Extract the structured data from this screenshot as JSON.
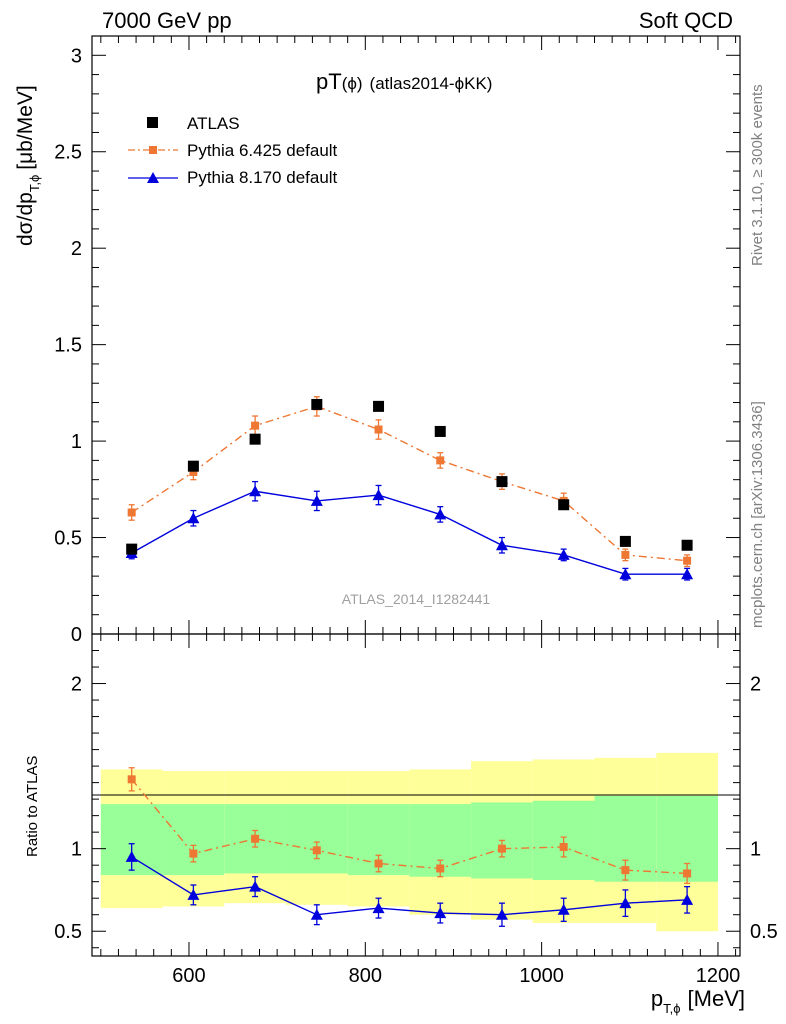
{
  "header": {
    "left": "7000 GeV pp",
    "right": "Soft QCD"
  },
  "title": {
    "main": "pT",
    "phi": "(ϕ)",
    "id": "(atlas2014-ϕKK)"
  },
  "side_labels": {
    "rivet": "Rivet 3.1.10, ≥ 300k events",
    "mcplots": "mcplots.cern.ch [arXiv:1306.3436]"
  },
  "watermark": "ATLAS_2014_I1282441",
  "axes": {
    "ylabel_top": "dσ/dp",
    "ylabel_top_sub": "T,ϕ",
    "ylabel_top_unit": "[μb/MeV]",
    "ylabel_bottom": "Ratio to ATLAS",
    "xlabel_main": "p",
    "xlabel_sub": "T,ϕ",
    "xlabel_unit": "[MeV]"
  },
  "chart_data": {
    "type": "scatter",
    "x": [
      535,
      605,
      675,
      745,
      815,
      885,
      955,
      1025,
      1095,
      1165
    ],
    "xlim": [
      490,
      1225
    ],
    "xticks": [
      "600",
      "800",
      "1000",
      "1200"
    ],
    "xtick_values": [
      600,
      800,
      1000,
      1200
    ],
    "main": {
      "ylim": [
        0,
        3.1
      ],
      "yticks": [
        "0",
        "0.5",
        "1",
        "1.5",
        "2",
        "2.5",
        "3"
      ],
      "ytick_values": [
        0,
        0.5,
        1,
        1.5,
        2,
        2.5,
        3
      ],
      "series": [
        {
          "name": "ATLAS",
          "color": "#000000",
          "marker": "square",
          "values": [
            0.44,
            0.87,
            1.01,
            1.19,
            1.18,
            1.05,
            0.79,
            0.67,
            0.48,
            0.46
          ]
        },
        {
          "name": "Pythia 6.425 default",
          "color": "#ee7733",
          "marker": "square-small",
          "line": "dashdot",
          "values": [
            0.63,
            0.84,
            1.08,
            1.18,
            1.06,
            0.9,
            0.79,
            0.69,
            0.41,
            0.38
          ],
          "errors": [
            0.04,
            0.04,
            0.05,
            0.05,
            0.05,
            0.04,
            0.04,
            0.04,
            0.03,
            0.03
          ]
        },
        {
          "name": "Pythia 8.170 default",
          "color": "#0000dd",
          "marker": "triangle",
          "line": "solid",
          "values": [
            0.42,
            0.6,
            0.74,
            0.69,
            0.72,
            0.62,
            0.46,
            0.41,
            0.31,
            0.31
          ],
          "errors": [
            0.03,
            0.04,
            0.05,
            0.05,
            0.05,
            0.04,
            0.04,
            0.03,
            0.03,
            0.03
          ]
        }
      ]
    },
    "ratio": {
      "ylim": [
        0.35,
        2.3
      ],
      "yticks": [
        "0.5",
        "1",
        "2"
      ],
      "ytick_values": [
        0.5,
        1,
        2
      ],
      "bands": {
        "edges": [
          500,
          570,
          640,
          710,
          780,
          850,
          920,
          990,
          1060,
          1130,
          1200
        ],
        "yellow_low": [
          0.64,
          0.65,
          0.67,
          0.66,
          0.65,
          0.6,
          0.57,
          0.55,
          0.55,
          0.5
        ],
        "yellow_high": [
          1.48,
          1.47,
          1.47,
          1.47,
          1.47,
          1.48,
          1.53,
          1.54,
          1.55,
          1.58
        ],
        "green_low": [
          0.84,
          0.84,
          0.85,
          0.85,
          0.84,
          0.83,
          0.82,
          0.81,
          0.8,
          0.8
        ],
        "green_high": [
          1.27,
          1.27,
          1.27,
          1.27,
          1.27,
          1.27,
          1.28,
          1.29,
          1.32,
          1.32
        ]
      },
      "series": [
        {
          "name": "Pythia 6.425 default",
          "color": "#ee7733",
          "values": [
            1.42,
            0.97,
            1.06,
            0.99,
            0.91,
            0.88,
            1.0,
            1.01,
            0.87,
            0.85
          ],
          "errors": [
            0.07,
            0.05,
            0.05,
            0.05,
            0.05,
            0.05,
            0.05,
            0.06,
            0.06,
            0.06
          ]
        },
        {
          "name": "Pythia 8.170 default",
          "color": "#0000dd",
          "values": [
            0.95,
            0.72,
            0.77,
            0.6,
            0.64,
            0.61,
            0.6,
            0.63,
            0.67,
            0.69
          ],
          "errors": [
            0.08,
            0.06,
            0.06,
            0.06,
            0.06,
            0.06,
            0.07,
            0.07,
            0.08,
            0.08
          ]
        }
      ]
    }
  }
}
